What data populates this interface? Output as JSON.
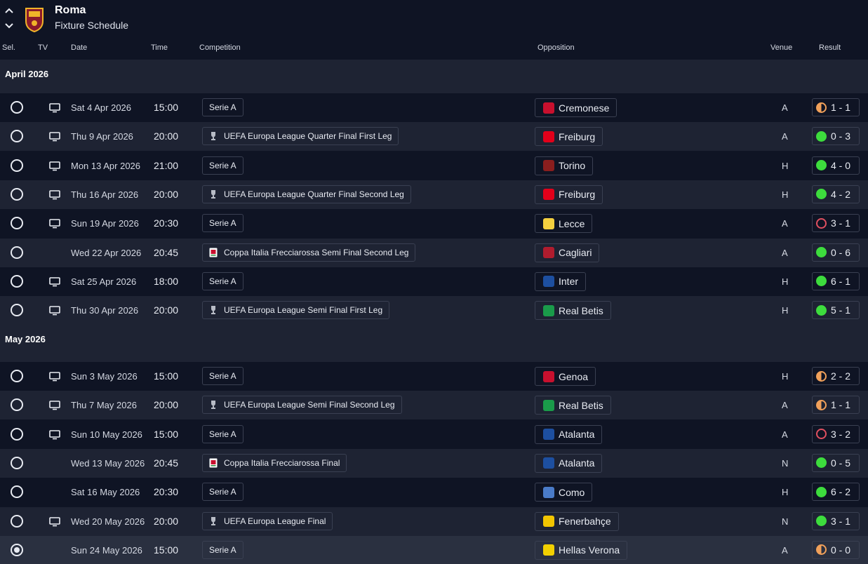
{
  "header": {
    "club_name": "Roma",
    "page_title": "Fixture Schedule"
  },
  "columns": {
    "sel": "Sel.",
    "tv": "TV",
    "date": "Date",
    "time": "Time",
    "competition": "Competition",
    "opposition": "Opposition",
    "venue": "Venue",
    "result": "Result"
  },
  "months": [
    {
      "label": "April 2026",
      "fixtures": [
        {
          "selected": false,
          "tv": true,
          "date": "Sat 4 Apr 2026",
          "time": "15:00",
          "competition": "Serie A",
          "comp_icon": "",
          "opposition": "Cremonese",
          "opp_color": "#c8102e",
          "venue": "A",
          "result": "1 - 1",
          "outcome": "draw"
        },
        {
          "selected": false,
          "tv": true,
          "date": "Thu 9 Apr 2026",
          "time": "20:00",
          "competition": "UEFA Europa League Quarter Final First Leg",
          "comp_icon": "trophy-icon",
          "opposition": "Freiburg",
          "opp_color": "#e2001a",
          "venue": "A",
          "result": "0 - 3",
          "outcome": "win"
        },
        {
          "selected": false,
          "tv": true,
          "date": "Mon 13 Apr 2026",
          "time": "21:00",
          "competition": "Serie A",
          "comp_icon": "",
          "opposition": "Torino",
          "opp_color": "#8a1e1e",
          "venue": "H",
          "result": "4 - 0",
          "outcome": "win"
        },
        {
          "selected": false,
          "tv": true,
          "date": "Thu 16 Apr 2026",
          "time": "20:00",
          "competition": "UEFA Europa League Quarter Final Second Leg",
          "comp_icon": "trophy-icon",
          "opposition": "Freiburg",
          "opp_color": "#e2001a",
          "venue": "H",
          "result": "4 - 2",
          "outcome": "win"
        },
        {
          "selected": false,
          "tv": true,
          "date": "Sun 19 Apr 2026",
          "time": "20:30",
          "competition": "Serie A",
          "comp_icon": "",
          "opposition": "Lecce",
          "opp_color": "#f4d03f",
          "venue": "A",
          "result": "3 - 1",
          "outcome": "loss"
        },
        {
          "selected": false,
          "tv": false,
          "date": "Wed 22 Apr 2026",
          "time": "20:45",
          "competition": "Coppa Italia Frecciarossa Semi Final Second Leg",
          "comp_icon": "coppa-icon",
          "opposition": "Cagliari",
          "opp_color": "#b01c2e",
          "venue": "A",
          "result": "0 - 6",
          "outcome": "win"
        },
        {
          "selected": false,
          "tv": true,
          "date": "Sat 25 Apr 2026",
          "time": "18:00",
          "competition": "Serie A",
          "comp_icon": "",
          "opposition": "Inter",
          "opp_color": "#1d4fa0",
          "venue": "H",
          "result": "6 - 1",
          "outcome": "win"
        },
        {
          "selected": false,
          "tv": true,
          "date": "Thu 30 Apr 2026",
          "time": "20:00",
          "competition": "UEFA Europa League Semi Final First Leg",
          "comp_icon": "trophy-icon",
          "opposition": "Real Betis",
          "opp_color": "#1a9b4a",
          "venue": "H",
          "result": "5 - 1",
          "outcome": "win"
        }
      ]
    },
    {
      "label": "May 2026",
      "fixtures": [
        {
          "selected": false,
          "tv": true,
          "date": "Sun 3 May 2026",
          "time": "15:00",
          "competition": "Serie A",
          "comp_icon": "",
          "opposition": "Genoa",
          "opp_color": "#c8102e",
          "venue": "H",
          "result": "2 - 2",
          "outcome": "draw"
        },
        {
          "selected": false,
          "tv": true,
          "date": "Thu 7 May 2026",
          "time": "20:00",
          "competition": "UEFA Europa League Semi Final Second Leg",
          "comp_icon": "trophy-icon",
          "opposition": "Real Betis",
          "opp_color": "#1a9b4a",
          "venue": "A",
          "result": "1 - 1",
          "outcome": "draw"
        },
        {
          "selected": false,
          "tv": true,
          "date": "Sun 10 May 2026",
          "time": "15:00",
          "competition": "Serie A",
          "comp_icon": "",
          "opposition": "Atalanta",
          "opp_color": "#1d4fa0",
          "venue": "A",
          "result": "3 - 2",
          "outcome": "loss"
        },
        {
          "selected": false,
          "tv": false,
          "date": "Wed 13 May 2026",
          "time": "20:45",
          "competition": "Coppa Italia Frecciarossa Final",
          "comp_icon": "coppa-icon",
          "opposition": "Atalanta",
          "opp_color": "#1d4fa0",
          "venue": "N",
          "result": "0 - 5",
          "outcome": "win"
        },
        {
          "selected": false,
          "tv": false,
          "date": "Sat 16 May 2026",
          "time": "20:30",
          "competition": "Serie A",
          "comp_icon": "",
          "opposition": "Como",
          "opp_color": "#4a7bc8",
          "venue": "H",
          "result": "6 - 2",
          "outcome": "win"
        },
        {
          "selected": false,
          "tv": true,
          "date": "Wed 20 May 2026",
          "time": "20:00",
          "competition": "UEFA Europa League Final",
          "comp_icon": "trophy-icon",
          "opposition": "Fenerbahçe",
          "opp_color": "#f2c500",
          "venue": "N",
          "result": "3 - 1",
          "outcome": "win"
        },
        {
          "selected": true,
          "tv": false,
          "date": "Sun 24 May 2026",
          "time": "15:00",
          "competition": "Serie A",
          "comp_icon": "",
          "opposition": "Hellas Verona",
          "opp_color": "#f2d000",
          "venue": "A",
          "result": "0 - 0",
          "outcome": "draw"
        }
      ]
    }
  ]
}
